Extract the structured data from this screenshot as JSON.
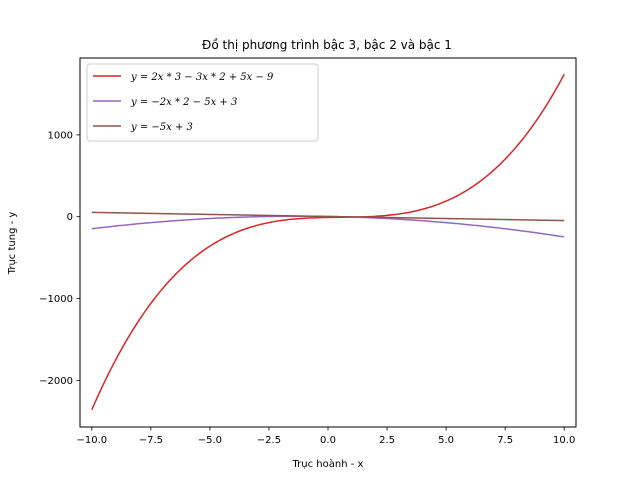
{
  "chart_data": {
    "type": "line",
    "title": "Đồ thị phương trình bậc 3, bậc 2 và bậc 1",
    "xlabel": "Trục hoành - x",
    "ylabel": "Trục tung - y",
    "xlim": [
      -10.5,
      10.5
    ],
    "ylim": [
      -2570,
      1940
    ],
    "x_ticks": [
      -10.0,
      -7.5,
      -5.0,
      -2.5,
      0.0,
      2.5,
      5.0,
      7.5,
      10.0
    ],
    "x_tick_labels": [
      "−10.0",
      "−7.5",
      "−5.0",
      "−2.5",
      "0.0",
      "2.5",
      "5.0",
      "7.5",
      "10.0"
    ],
    "y_ticks": [
      -2000,
      -1000,
      0,
      1000
    ],
    "y_tick_labels": [
      "−2000",
      "−1000",
      "0",
      "1000"
    ],
    "grid": false,
    "legend_position": "upper-left",
    "x_range": [
      -10,
      10
    ],
    "series": [
      {
        "name": "y = 2x * 3 − 3x * 2 + 5x − 9",
        "color": "#d62728",
        "coefficients": [
          2,
          -3,
          5,
          -9
        ],
        "x": [
          -10,
          -7.5,
          -5,
          -2.5,
          0,
          2.5,
          5,
          7.5,
          10
        ],
        "values": [
          -2359,
          -1050.75,
          -359,
          -80.25,
          -9,
          17.25,
          166,
          622.5,
          1741
        ]
      },
      {
        "name": "y = −2x * 2 − 5x + 3",
        "color": "#9467bd",
        "coefficients": [
          0,
          -2,
          -5,
          3
        ],
        "x": [
          -10,
          -7.5,
          -5,
          -2.5,
          0,
          2.5,
          5,
          7.5,
          10
        ],
        "values": [
          -147,
          -71.5,
          -22,
          3,
          3,
          -21,
          -72,
          -147,
          -247
        ]
      },
      {
        "name": "y = −5x + 3",
        "color": "#8c564b",
        "coefficients": [
          0,
          0,
          -5,
          3
        ],
        "x": [
          -10,
          -7.5,
          -5,
          -2.5,
          0,
          2.5,
          5,
          7.5,
          10
        ],
        "values": [
          53,
          40.5,
          28,
          15.5,
          3,
          -9.5,
          -22,
          -34.5,
          -47
        ]
      }
    ]
  }
}
